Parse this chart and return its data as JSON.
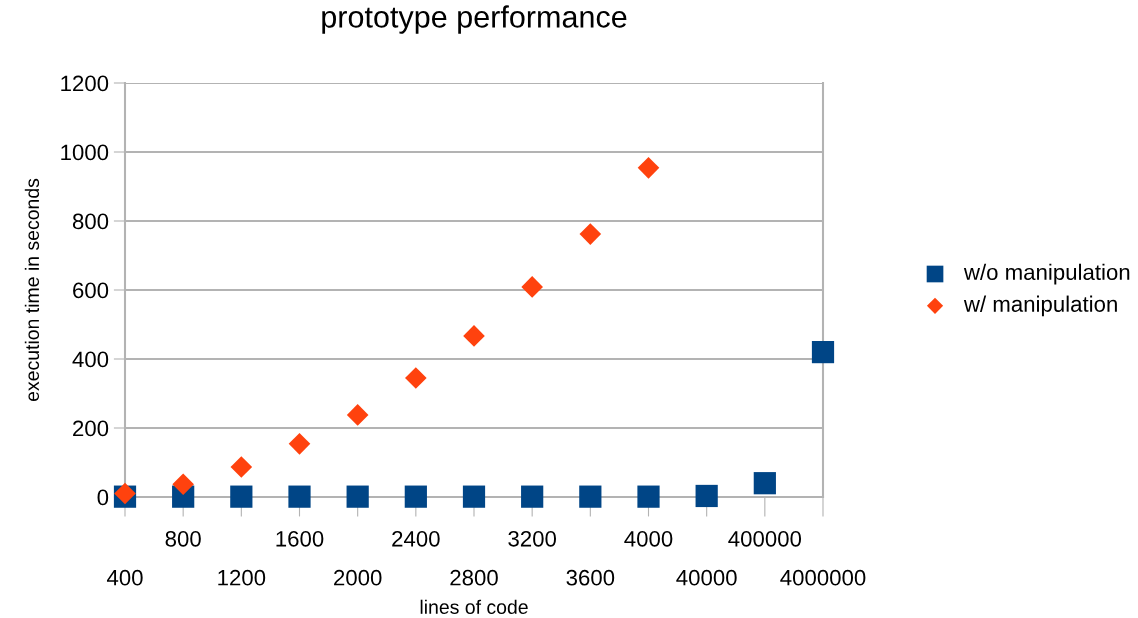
{
  "chart_data": {
    "type": "scatter",
    "title": "prototype performance",
    "xlabel": "lines of code",
    "ylabel": "execution time in seconds",
    "categories": [
      "400",
      "800",
      "1200",
      "1600",
      "2000",
      "2400",
      "2800",
      "3200",
      "3600",
      "4000",
      "40000",
      "400000",
      "4000000"
    ],
    "series": [
      {
        "name": "w/o manipulation",
        "color": "#004586",
        "marker": "square",
        "values": [
          1,
          1,
          1,
          1,
          1,
          1,
          1,
          1,
          1,
          1,
          3,
          40,
          420
        ]
      },
      {
        "name": "w/ manipulation",
        "color": "#ff420e",
        "marker": "diamond",
        "values": [
          10,
          37,
          87,
          154,
          238,
          345,
          467,
          609,
          762,
          954,
          null,
          null,
          null
        ]
      }
    ],
    "ylim": [
      0,
      1200
    ],
    "yticks": [
      0,
      200,
      400,
      600,
      800,
      1000,
      1200
    ],
    "grid": "y",
    "legend": "right"
  }
}
